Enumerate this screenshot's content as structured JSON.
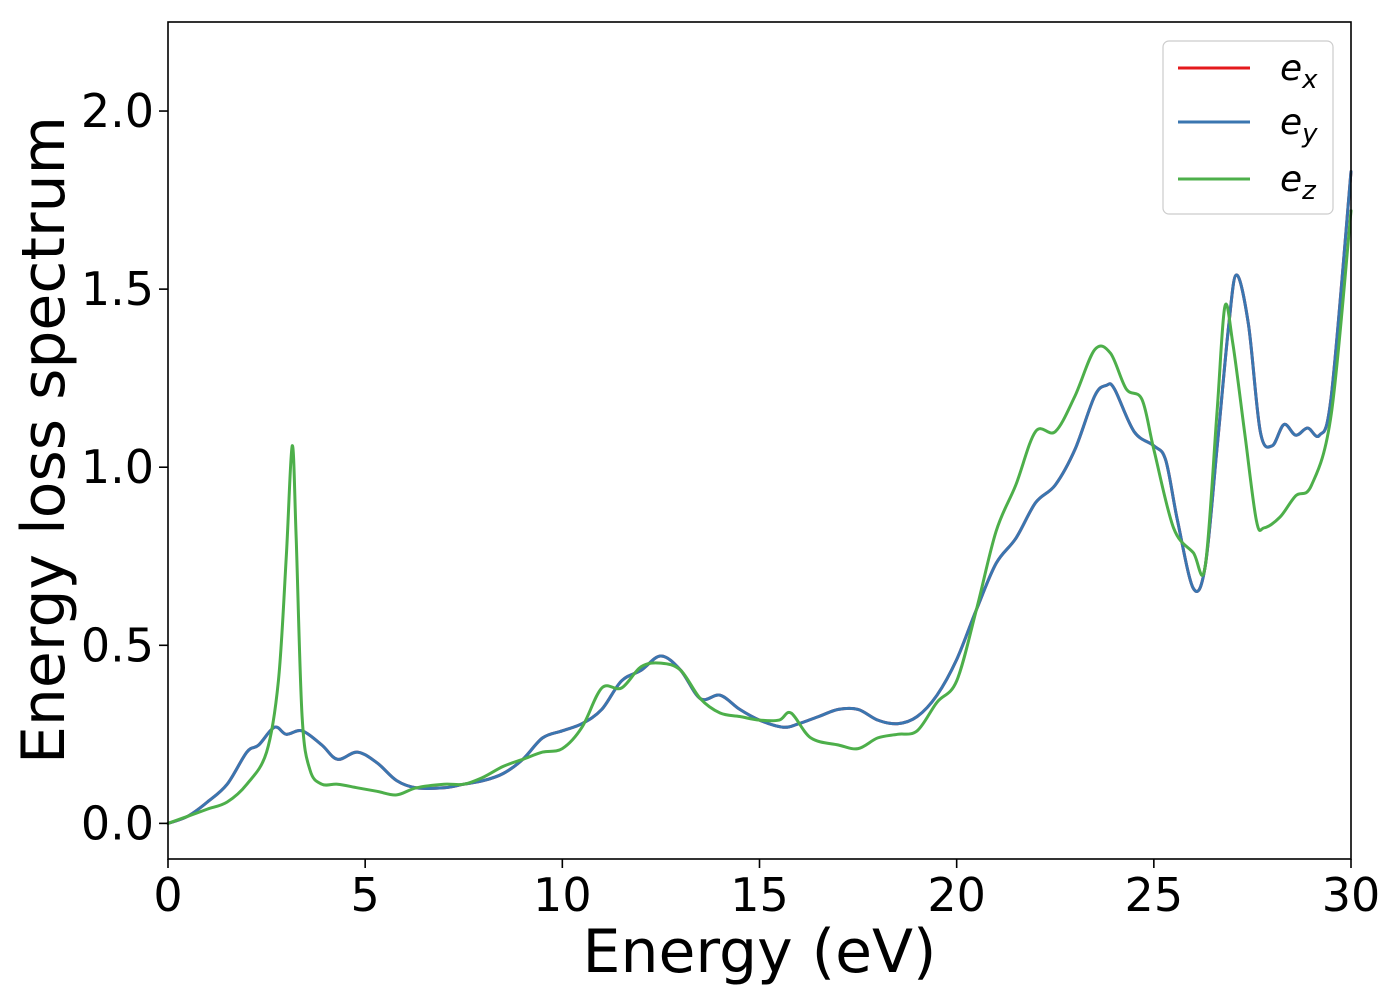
{
  "chart_data": {
    "type": "line",
    "title": "",
    "xlabel": "Energy (eV)",
    "ylabel": "Energy loss spectrum",
    "xlim": [
      0,
      30
    ],
    "ylim": [
      -0.1,
      2.25
    ],
    "xticks": [
      0,
      5,
      10,
      15,
      20,
      25,
      30
    ],
    "xtick_labels": [
      "0",
      "5",
      "10",
      "15",
      "20",
      "25",
      "30"
    ],
    "yticks": [
      0.0,
      0.5,
      1.0,
      1.5,
      2.0
    ],
    "ytick_labels": [
      "0.0",
      "0.5",
      "1.0",
      "1.5",
      "2.0"
    ],
    "grid": false,
    "legend_position": "top-right",
    "series": [
      {
        "name": "e_x",
        "legend_base": "e",
        "legend_sub": "x",
        "color": "#e41a1c",
        "x": [
          0,
          0.5,
          1.0,
          1.5,
          2.0,
          2.3,
          2.7,
          3.0,
          3.4,
          3.9,
          4.3,
          4.8,
          5.3,
          5.8,
          6.3,
          7.0,
          7.5,
          8.0,
          8.5,
          9.0,
          9.5,
          10.0,
          10.5,
          11.0,
          11.5,
          12.0,
          12.5,
          13.0,
          13.5,
          14.0,
          14.5,
          15.0,
          15.6,
          16.0,
          16.5,
          17.0,
          17.5,
          18.0,
          18.5,
          19.0,
          19.5,
          20.0,
          20.5,
          21.0,
          21.5,
          22.0,
          22.5,
          23.0,
          23.5,
          23.8,
          24.0,
          24.5,
          25.0,
          25.3,
          25.6,
          26.0,
          26.3,
          26.6,
          26.9,
          27.1,
          27.4,
          27.7,
          28.0,
          28.3,
          28.6,
          28.9,
          29.2,
          29.5,
          30.0
        ],
        "y": [
          0,
          0.02,
          0.06,
          0.11,
          0.2,
          0.22,
          0.27,
          0.25,
          0.26,
          0.22,
          0.18,
          0.2,
          0.17,
          0.12,
          0.1,
          0.1,
          0.11,
          0.12,
          0.14,
          0.18,
          0.24,
          0.26,
          0.28,
          0.32,
          0.4,
          0.43,
          0.47,
          0.43,
          0.35,
          0.36,
          0.32,
          0.29,
          0.27,
          0.28,
          0.3,
          0.32,
          0.32,
          0.29,
          0.28,
          0.3,
          0.36,
          0.46,
          0.6,
          0.73,
          0.8,
          0.9,
          0.95,
          1.05,
          1.2,
          1.23,
          1.22,
          1.1,
          1.06,
          1.02,
          0.85,
          0.66,
          0.72,
          1.05,
          1.4,
          1.54,
          1.4,
          1.1,
          1.06,
          1.12,
          1.09,
          1.11,
          1.09,
          1.2,
          1.83
        ]
      },
      {
        "name": "e_y",
        "legend_base": "e",
        "legend_sub": "y",
        "color": "#3a76b0",
        "x": [
          0,
          0.5,
          1.0,
          1.5,
          2.0,
          2.3,
          2.7,
          3.0,
          3.4,
          3.9,
          4.3,
          4.8,
          5.3,
          5.8,
          6.3,
          7.0,
          7.5,
          8.0,
          8.5,
          9.0,
          9.5,
          10.0,
          10.5,
          11.0,
          11.5,
          12.0,
          12.5,
          13.0,
          13.5,
          14.0,
          14.5,
          15.0,
          15.6,
          16.0,
          16.5,
          17.0,
          17.5,
          18.0,
          18.5,
          19.0,
          19.5,
          20.0,
          20.5,
          21.0,
          21.5,
          22.0,
          22.5,
          23.0,
          23.5,
          23.8,
          24.0,
          24.5,
          25.0,
          25.3,
          25.6,
          26.0,
          26.3,
          26.6,
          26.9,
          27.1,
          27.4,
          27.7,
          28.0,
          28.3,
          28.6,
          28.9,
          29.2,
          29.5,
          30.0
        ],
        "y": [
          0,
          0.02,
          0.06,
          0.11,
          0.2,
          0.22,
          0.27,
          0.25,
          0.26,
          0.22,
          0.18,
          0.2,
          0.17,
          0.12,
          0.1,
          0.1,
          0.11,
          0.12,
          0.14,
          0.18,
          0.24,
          0.26,
          0.28,
          0.32,
          0.4,
          0.43,
          0.47,
          0.43,
          0.35,
          0.36,
          0.32,
          0.29,
          0.27,
          0.28,
          0.3,
          0.32,
          0.32,
          0.29,
          0.28,
          0.3,
          0.36,
          0.46,
          0.6,
          0.73,
          0.8,
          0.9,
          0.95,
          1.05,
          1.2,
          1.23,
          1.22,
          1.1,
          1.06,
          1.02,
          0.85,
          0.66,
          0.72,
          1.05,
          1.4,
          1.54,
          1.4,
          1.1,
          1.06,
          1.12,
          1.09,
          1.11,
          1.09,
          1.2,
          1.83
        ]
      },
      {
        "name": "e_z",
        "legend_base": "e",
        "legend_sub": "z",
        "color": "#4daf4a",
        "x": [
          0,
          0.5,
          1.0,
          1.5,
          2.0,
          2.5,
          2.8,
          3.0,
          3.15,
          3.25,
          3.4,
          3.6,
          3.9,
          4.3,
          4.8,
          5.3,
          5.8,
          6.3,
          7.0,
          7.5,
          8.0,
          8.5,
          9.0,
          9.5,
          10.0,
          10.5,
          11.0,
          11.5,
          12.0,
          12.5,
          13.0,
          13.5,
          14.0,
          14.5,
          15.0,
          15.5,
          15.8,
          16.3,
          17.0,
          17.5,
          18.0,
          18.5,
          19.0,
          19.5,
          20.0,
          20.5,
          21.0,
          21.5,
          22.0,
          22.5,
          23.0,
          23.5,
          23.9,
          24.3,
          24.7,
          25.0,
          25.5,
          26.0,
          26.3,
          26.6,
          26.8,
          27.0,
          27.3,
          27.6,
          27.8,
          28.2,
          28.6,
          29.0,
          29.5,
          30.0
        ],
        "y": [
          0,
          0.02,
          0.04,
          0.06,
          0.11,
          0.2,
          0.4,
          0.75,
          1.06,
          0.8,
          0.3,
          0.15,
          0.11,
          0.11,
          0.1,
          0.09,
          0.08,
          0.1,
          0.11,
          0.11,
          0.13,
          0.16,
          0.18,
          0.2,
          0.21,
          0.27,
          0.38,
          0.38,
          0.44,
          0.45,
          0.43,
          0.35,
          0.31,
          0.3,
          0.29,
          0.29,
          0.31,
          0.24,
          0.22,
          0.21,
          0.24,
          0.25,
          0.26,
          0.34,
          0.4,
          0.6,
          0.82,
          0.95,
          1.1,
          1.1,
          1.2,
          1.33,
          1.32,
          1.22,
          1.19,
          1.05,
          0.83,
          0.76,
          0.72,
          1.15,
          1.45,
          1.35,
          1.1,
          0.85,
          0.83,
          0.86,
          0.92,
          0.95,
          1.15,
          1.72
        ]
      }
    ]
  }
}
